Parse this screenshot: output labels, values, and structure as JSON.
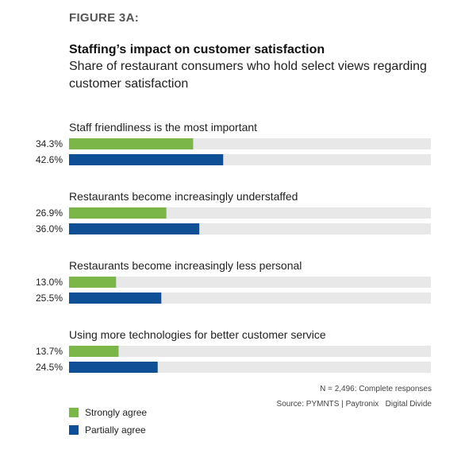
{
  "figure_label": "FIGURE 3A:",
  "title": "Staffing’s impact on customer satisfaction",
  "subtitle": "Share of restaurant consumers who hold select views regarding customer satisfaction",
  "notes": {
    "n": "N = 2,496: Complete responses",
    "source": "Source: PYMNTS | Paytronix   Digital Divide"
  },
  "colors": {
    "strongly": "#7ab648",
    "partially": "#0e4f96",
    "track": "#e8e8e8"
  },
  "chart_data": {
    "type": "bar",
    "orientation": "horizontal",
    "title": "Staffing’s impact on customer satisfaction",
    "categories": [
      "Staff friendliness is the most important",
      "Restaurants become increasingly understaffed",
      "Restaurants become increasingly less personal",
      "Using more technologies for better customer service"
    ],
    "series": [
      {
        "name": "Strongly agree",
        "values": [
          34.3,
          26.9,
          13.0,
          13.7
        ],
        "labels": [
          "34.3%",
          "26.9%",
          "13.0%",
          "13.7%"
        ]
      },
      {
        "name": "Partially agree",
        "values": [
          42.6,
          36.0,
          25.5,
          24.5
        ],
        "labels": [
          "42.6%",
          "36.0%",
          "25.5%",
          "24.5%"
        ]
      }
    ],
    "xlim": [
      0,
      100
    ],
    "legend": "bottom-left",
    "grid": false
  }
}
